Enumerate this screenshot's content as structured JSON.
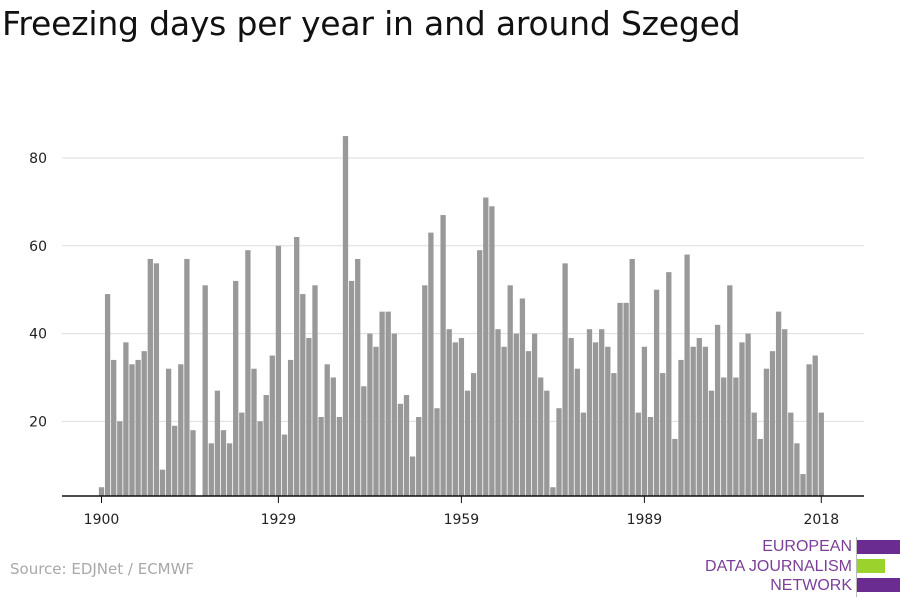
{
  "title": "Freezing days per year in and around Szeged",
  "source": "Source: EDJNet / ECMWF",
  "logo": {
    "lines": [
      "EUROPEAN",
      "DATA JOURNALISM",
      "NETWORK"
    ],
    "colors": [
      "#6b2c91",
      "#9bd22b",
      "#6b2c91"
    ]
  },
  "chart_data": {
    "type": "bar",
    "title": "Freezing days per year in and around Szeged",
    "xlabel": "",
    "ylabel": "",
    "bar_color": "#999999",
    "grid": true,
    "start_year": 1900,
    "x_ticks": [
      1900,
      1929,
      1959,
      1989,
      2018
    ],
    "y_ticks": [
      20,
      40,
      60,
      80
    ],
    "ylim": [
      3,
      88
    ],
    "values": [
      5,
      49,
      34,
      20,
      38,
      33,
      34,
      36,
      57,
      56,
      9,
      32,
      19,
      33,
      57,
      18,
      3,
      51,
      15,
      27,
      18,
      15,
      52,
      22,
      59,
      32,
      20,
      26,
      35,
      60,
      17,
      34,
      62,
      49,
      39,
      51,
      21,
      33,
      30,
      21,
      85,
      52,
      57,
      28,
      40,
      37,
      45,
      45,
      40,
      24,
      26,
      12,
      21,
      51,
      63,
      23,
      67,
      41,
      38,
      39,
      27,
      31,
      59,
      71,
      69,
      41,
      37,
      51,
      40,
      48,
      36,
      40,
      30,
      27,
      5,
      23,
      56,
      39,
      32,
      22,
      41,
      38,
      41,
      37,
      31,
      47,
      47,
      57,
      22,
      37,
      21,
      50,
      31,
      54,
      16,
      34,
      58,
      37,
      39,
      37,
      27,
      42,
      30,
      51,
      30,
      38,
      40,
      22,
      16,
      32,
      36,
      45,
      41,
      22,
      15,
      8,
      33,
      35,
      22
    ]
  }
}
